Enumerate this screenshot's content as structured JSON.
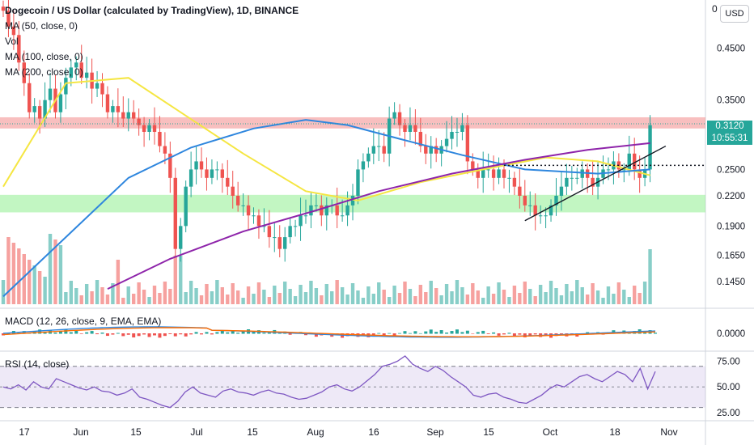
{
  "header": {
    "title": "Dogecoin / US Dollar (calculated by TradingView), 1D, BINANCE",
    "indicators": [
      "MA (50, close, 0)",
      "Vol",
      "MA (100, close, 0)",
      "MA (200, close, 0)"
    ]
  },
  "price_scale": {
    "currency_button": "USD",
    "top_partial": "0",
    "last_price": "0.3120",
    "countdown": "10:55:31"
  },
  "macd": {
    "label": "MACD (12, 26, close, 9, EMA, EMA)"
  },
  "rsi": {
    "label": "RSI (14, close)"
  },
  "colors": {
    "up": "#26a69a",
    "down": "#ef5350",
    "ma50": "#f5e642",
    "ma100": "#2e86de",
    "ma200": "#8e24aa",
    "rsi_line": "#7e57c2",
    "resistance_zone": "#f28b8b",
    "support_zone": "#90ee90"
  },
  "chart_data": [
    {
      "type": "candlestick",
      "title": "Dogecoin / US Dollar (calculated by TradingView), 1D, BINANCE",
      "y_scale": "log",
      "y_ticks": [
        "0.4500",
        "0.3500",
        "0.2500",
        "0.2200",
        "0.1900",
        "0.1650",
        "0.1450"
      ],
      "x_ticks": [
        "17",
        "Jun",
        "15",
        "Jul",
        "15",
        "Aug",
        "16",
        "Sep",
        "15",
        "Oct",
        "18",
        "Nov"
      ],
      "ohlc_closes_approx": [
        0.54,
        0.5,
        0.48,
        0.42,
        0.38,
        0.33,
        0.34,
        0.32,
        0.35,
        0.37,
        0.33,
        0.36,
        0.39,
        0.41,
        0.42,
        0.39,
        0.4,
        0.37,
        0.38,
        0.36,
        0.33,
        0.34,
        0.33,
        0.32,
        0.33,
        0.32,
        0.31,
        0.3,
        0.31,
        0.3,
        0.28,
        0.27,
        0.24,
        0.17,
        0.19,
        0.23,
        0.25,
        0.26,
        0.25,
        0.24,
        0.25,
        0.25,
        0.24,
        0.23,
        0.22,
        0.21,
        0.21,
        0.2,
        0.2,
        0.19,
        0.19,
        0.18,
        0.18,
        0.17,
        0.18,
        0.19,
        0.19,
        0.2,
        0.2,
        0.21,
        0.21,
        0.2,
        0.21,
        0.21,
        0.2,
        0.2,
        0.21,
        0.22,
        0.25,
        0.26,
        0.27,
        0.28,
        0.28,
        0.27,
        0.32,
        0.33,
        0.31,
        0.3,
        0.31,
        0.3,
        0.28,
        0.27,
        0.28,
        0.27,
        0.28,
        0.29,
        0.3,
        0.3,
        0.31,
        0.26,
        0.25,
        0.24,
        0.25,
        0.25,
        0.24,
        0.25,
        0.24,
        0.24,
        0.23,
        0.22,
        0.21,
        0.21,
        0.2,
        0.2,
        0.2,
        0.21,
        0.22,
        0.23,
        0.24,
        0.24,
        0.24,
        0.25,
        0.24,
        0.23,
        0.24,
        0.25,
        0.25,
        0.26,
        0.25,
        0.25,
        0.27,
        0.25,
        0.24,
        0.25,
        0.31
      ],
      "moving_averages": [
        {
          "name": "MA (50, close, 0)",
          "points": [
            [
              0,
              0.23
            ],
            [
              12,
              0.38
            ],
            [
              24,
              0.39
            ],
            [
              34,
              0.33
            ],
            [
              46,
              0.27
            ],
            [
              58,
              0.225
            ],
            [
              68,
              0.215
            ],
            [
              80,
              0.235
            ],
            [
              92,
              0.25
            ],
            [
              104,
              0.265
            ],
            [
              114,
              0.26
            ],
            [
              124,
              0.243
            ]
          ]
        },
        {
          "name": "MA (100, close, 0)",
          "points": [
            [
              0,
              0.135
            ],
            [
              12,
              0.18
            ],
            [
              24,
              0.24
            ],
            [
              36,
              0.278
            ],
            [
              48,
              0.305
            ],
            [
              58,
              0.318
            ],
            [
              66,
              0.31
            ],
            [
              76,
              0.29
            ],
            [
              88,
              0.268
            ],
            [
              100,
              0.25
            ],
            [
              114,
              0.245
            ],
            [
              124,
              0.25
            ]
          ]
        },
        {
          "name": "MA (200, close, 0)",
          "points": [
            [
              20,
              0.14
            ],
            [
              32,
              0.162
            ],
            [
              46,
              0.185
            ],
            [
              60,
              0.205
            ],
            [
              72,
              0.225
            ],
            [
              86,
              0.245
            ],
            [
              100,
              0.262
            ],
            [
              112,
              0.275
            ],
            [
              124,
              0.284
            ]
          ]
        }
      ],
      "zones": [
        {
          "name": "resistance",
          "from": 0.305,
          "to": 0.322
        },
        {
          "name": "support",
          "from": 0.203,
          "to": 0.221
        }
      ],
      "trendlines": [
        {
          "name": "ascending-support",
          "from": [
            100,
            0.195
          ],
          "to": [
            127,
            0.28
          ]
        },
        {
          "name": "breakout-level",
          "value": 0.255,
          "from_x": 96,
          "to_x": 130
        }
      ]
    },
    {
      "type": "bar",
      "title": "Vol"
    },
    {
      "type": "histogram",
      "title": "MACD (12, 26, close, 9, EMA, EMA)",
      "y_ticks": [
        "0.0000"
      ]
    },
    {
      "type": "line",
      "title": "RSI (14, close)",
      "y_ticks": [
        "75.00",
        "50.00",
        "25.00"
      ],
      "bands": [
        30,
        70
      ],
      "values_approx": [
        50,
        48,
        52,
        47,
        55,
        50,
        48,
        58,
        55,
        52,
        49,
        47,
        50,
        46,
        45,
        42,
        44,
        48,
        40,
        38,
        35,
        32,
        30,
        36,
        45,
        50,
        44,
        42,
        40,
        46,
        48,
        45,
        44,
        42,
        45,
        47,
        44,
        43,
        40,
        38,
        39,
        42,
        45,
        50,
        52,
        48,
        46,
        50,
        56,
        62,
        70,
        72,
        75,
        80,
        72,
        68,
        65,
        70,
        66,
        60,
        55,
        50,
        42,
        40,
        43,
        44,
        40,
        38,
        35,
        34,
        38,
        42,
        48,
        52,
        50,
        55,
        60,
        62,
        58,
        55,
        60,
        65,
        62,
        55,
        68,
        48,
        65
      ]
    }
  ]
}
